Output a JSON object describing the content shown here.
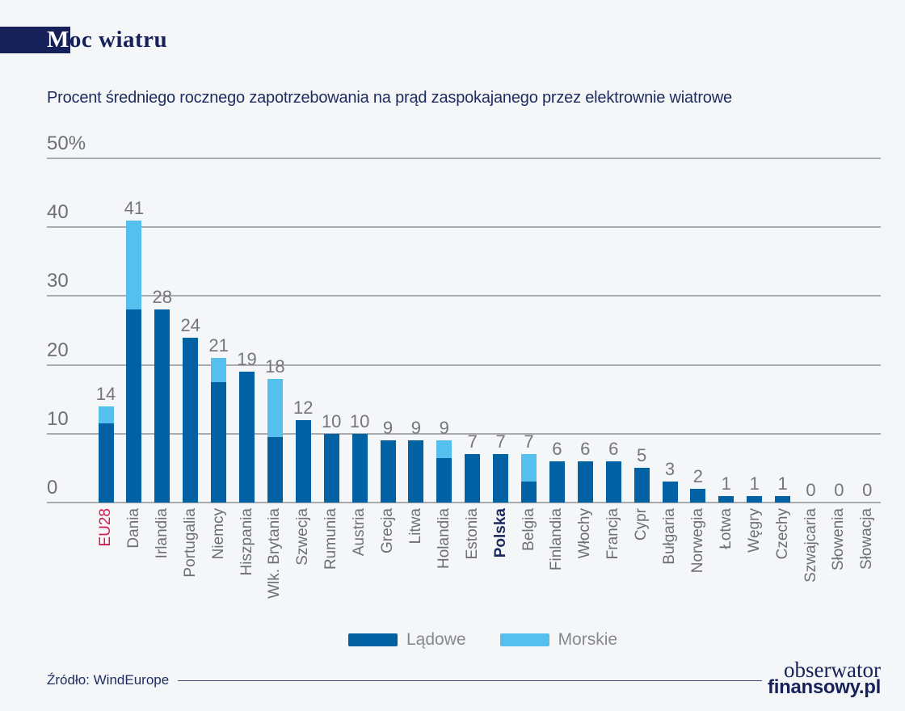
{
  "header": {
    "title_first": "M",
    "title_rest": "oc wiatru",
    "title_full": "Moc wiatru",
    "subtitle": "Procent średniego rocznego zapotrzebowania na prąd zaspokajanego przez elektrownie wiatrowe"
  },
  "chart_data": {
    "type": "bar",
    "stacked": true,
    "unit": "%",
    "ylim": [
      0,
      50
    ],
    "yticks": [
      0,
      10,
      20,
      30,
      40,
      50
    ],
    "ytick_labels": [
      "0",
      "10",
      "20",
      "30",
      "40",
      "50%"
    ],
    "grid": true,
    "legend_position": "bottom-center",
    "categories": [
      "EU28",
      "Dania",
      "Irlandia",
      "Portugalia",
      "Niemcy",
      "Hiszpania",
      "Wlk. Brytania",
      "Szwecja",
      "Rumunia",
      "Austria",
      "Grecja",
      "Litwa",
      "Holandia",
      "Estonia",
      "Polska",
      "Belgia",
      "Finlandia",
      "Włochy",
      "Francja",
      "Cypr",
      "Bułgaria",
      "Norwegia",
      "Łotwa",
      "Węgry",
      "Czechy",
      "Szwajcaria",
      "Słowenia",
      "Słowacja"
    ],
    "series": [
      {
        "name": "Lądowe",
        "color": "#0161a2",
        "values": [
          11.5,
          28,
          28,
          24,
          17.5,
          19,
          9.5,
          12,
          10,
          10,
          9,
          9,
          6.5,
          7,
          7,
          3,
          6,
          6,
          6,
          5,
          3,
          2,
          1,
          1,
          1,
          0,
          0,
          0
        ]
      },
      {
        "name": "Morskie",
        "color": "#55bfee",
        "values": [
          2.5,
          13,
          0,
          0,
          3.5,
          0,
          8.5,
          0,
          0,
          0,
          0,
          0,
          2.5,
          0,
          0,
          4,
          0,
          0,
          0,
          0,
          0,
          0,
          0,
          0,
          0,
          0,
          0,
          0
        ]
      }
    ],
    "totals": [
      14,
      41,
      28,
      24,
      21,
      19,
      18,
      12,
      10,
      10,
      9,
      9,
      9,
      7,
      7,
      7,
      6,
      6,
      6,
      5,
      3,
      2,
      1,
      1,
      1,
      0,
      0,
      0
    ],
    "highlighted_categories": [
      {
        "category": "EU28",
        "color": "#d31a4f",
        "bold": false
      },
      {
        "category": "Polska",
        "color": "#1b2a5e",
        "bold": true
      }
    ],
    "colors": {
      "axis_line": "#aaabad",
      "tick_label": "#6e6f71",
      "value_label": "#757678",
      "category_label": "#6e6f71"
    }
  },
  "legend": {
    "items": [
      {
        "label": "Lądowe",
        "color": "#0161a2"
      },
      {
        "label": "Morskie",
        "color": "#55bfee"
      }
    ]
  },
  "footer": {
    "source": "Źródło: WindEurope",
    "logo_line1": "obserwator",
    "logo_line2": "finansowy.pl"
  }
}
